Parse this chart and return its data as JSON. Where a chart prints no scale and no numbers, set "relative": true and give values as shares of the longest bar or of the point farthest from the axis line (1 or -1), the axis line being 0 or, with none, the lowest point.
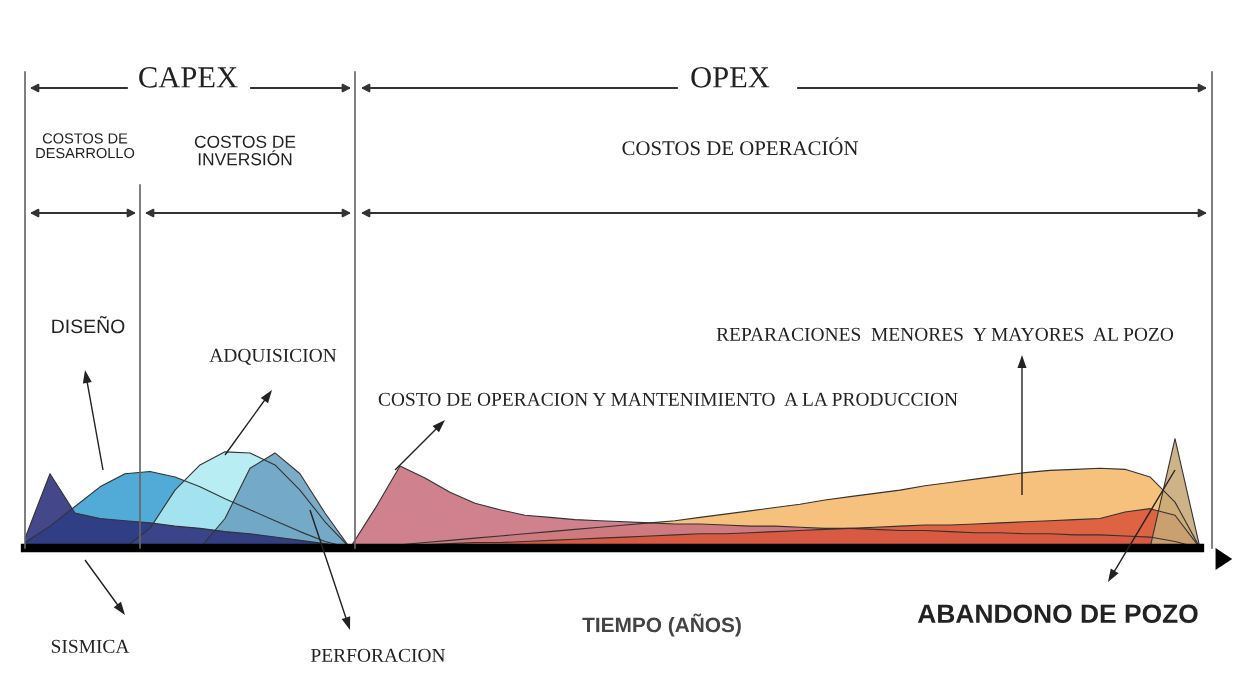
{
  "chart_data": {
    "type": "area",
    "relative": true,
    "xlabel": "TIEMPO (AÑOS)",
    "categories": [
      null,
      null,
      null,
      null,
      null,
      null,
      null,
      null,
      null,
      null,
      null,
      null,
      null,
      null,
      null,
      null,
      null,
      null,
      null,
      null,
      null,
      null,
      null,
      null,
      null,
      null,
      null,
      null,
      null,
      null,
      null,
      null,
      null,
      null,
      null,
      null,
      null,
      null,
      null,
      null,
      null,
      null,
      null,
      null,
      null,
      null,
      null,
      null
    ],
    "series": [
      {
        "color": "#3a9fd0",
        "values": [
          0.05,
          0.2,
          0.38,
          0.56,
          0.68,
          0.7,
          0.65,
          0.56,
          0.45,
          0.35,
          0.25,
          0.15,
          0.06,
          0,
          null,
          null,
          null,
          null,
          null,
          null,
          null,
          null,
          null,
          null,
          null,
          null,
          null,
          null,
          null,
          null,
          null,
          null,
          null,
          null,
          null,
          null,
          null,
          null,
          null,
          null,
          null,
          null,
          null,
          null,
          null,
          null,
          null,
          null
        ]
      },
      {
        "color": "#aeeaf2",
        "values": [
          null,
          null,
          null,
          null,
          0,
          0.18,
          0.53,
          0.76,
          0.88,
          0.87,
          0.76,
          0.53,
          0.24,
          0,
          null,
          null,
          null,
          null,
          null,
          null,
          null,
          null,
          null,
          null,
          null,
          null,
          null,
          null,
          null,
          null,
          null,
          null,
          null,
          null,
          null,
          null,
          null,
          null,
          null,
          null,
          null,
          null,
          null,
          null,
          null,
          null,
          null,
          null
        ]
      },
      {
        "color": "#6a9fc0",
        "values": [
          null,
          null,
          null,
          null,
          null,
          null,
          null,
          0,
          0.27,
          0.73,
          0.87,
          0.68,
          0.32,
          0,
          null,
          null,
          null,
          null,
          null,
          null,
          null,
          null,
          null,
          null,
          null,
          null,
          null,
          null,
          null,
          null,
          null,
          null,
          null,
          null,
          null,
          null,
          null,
          null,
          null,
          null,
          null,
          null,
          null,
          null,
          null,
          null,
          null,
          null
        ]
      },
      {
        "color": "#2a2f7a",
        "values": [
          0.09,
          0.68,
          0.32,
          0.27,
          0.25,
          0.23,
          0.2,
          0.18,
          0.15,
          0.13,
          0.1,
          0.07,
          0.04,
          0,
          null,
          null,
          null,
          null,
          null,
          null,
          null,
          null,
          null,
          null,
          null,
          null,
          null,
          null,
          null,
          null,
          null,
          null,
          null,
          null,
          null,
          null,
          null,
          null,
          null,
          null,
          null,
          null,
          null,
          null,
          null,
          null,
          null,
          null
        ]
      },
      {
        "color": "#f5b86a",
        "values": [
          null,
          null,
          null,
          null,
          null,
          null,
          null,
          null,
          null,
          null,
          null,
          null,
          null,
          0,
          0.01,
          0.03,
          0.05,
          0.07,
          0.09,
          0.11,
          0.13,
          0.15,
          0.17,
          0.19,
          0.21,
          0.23,
          0.25,
          0.28,
          0.31,
          0.34,
          0.37,
          0.4,
          0.44,
          0.47,
          0.5,
          0.53,
          0.57,
          0.6,
          0.63,
          0.66,
          0.69,
          0.71,
          0.72,
          0.73,
          0.72,
          0.65,
          0.42,
          0
        ]
      },
      {
        "color": "#c9707e",
        "values": [
          null,
          null,
          null,
          null,
          null,
          null,
          null,
          null,
          null,
          null,
          null,
          null,
          null,
          0,
          0.36,
          0.75,
          0.64,
          0.51,
          0.41,
          0.35,
          0.3,
          0.28,
          0.26,
          0.25,
          0.24,
          0.23,
          0.22,
          0.22,
          0.21,
          0.2,
          0.2,
          0.19,
          0.18,
          0.18,
          0.17,
          0.16,
          0.16,
          0.15,
          0.14,
          0.14,
          0.13,
          0.13,
          0.12,
          0.12,
          0.11,
          0.1,
          0.06,
          0
        ]
      },
      {
        "color": "#d9553a",
        "values": [
          null,
          null,
          null,
          null,
          null,
          null,
          null,
          null,
          null,
          null,
          null,
          null,
          null,
          0,
          0.01,
          0.02,
          0.03,
          0.04,
          0.05,
          0.05,
          0.06,
          0.07,
          0.08,
          0.09,
          0.1,
          0.11,
          0.12,
          0.13,
          0.13,
          0.14,
          0.15,
          0.16,
          0.17,
          0.18,
          0.19,
          0.2,
          0.21,
          0.21,
          0.22,
          0.23,
          0.24,
          0.25,
          0.26,
          0.27,
          0.33,
          0.36,
          0.3,
          0
        ]
      },
      {
        "color": "#c8a878",
        "values": [
          null,
          null,
          null,
          null,
          null,
          null,
          null,
          null,
          null,
          null,
          null,
          null,
          null,
          null,
          null,
          null,
          null,
          null,
          null,
          null,
          null,
          null,
          null,
          null,
          null,
          null,
          null,
          null,
          null,
          null,
          null,
          null,
          null,
          null,
          null,
          null,
          null,
          null,
          null,
          null,
          null,
          null,
          null,
          null,
          null,
          0,
          1,
          0
        ]
      }
    ],
    "annotations": [
      "CAPEX",
      "OPEX",
      "COSTOS DE\nDESARROLLO",
      "COSTOS DE\nINVERSIÓN",
      "COSTOS DE OPERACIÓN",
      "DISEÑO",
      "ADQUISICION",
      "COSTO DE OPERACION Y MANTENIMIENTO  A LA PRODUCCION",
      "REPARACIONES  MENORES  Y MAYORES  AL POZO",
      "SISMICA",
      "PERFORACION",
      "ABANDONO DE POZO"
    ]
  }
}
